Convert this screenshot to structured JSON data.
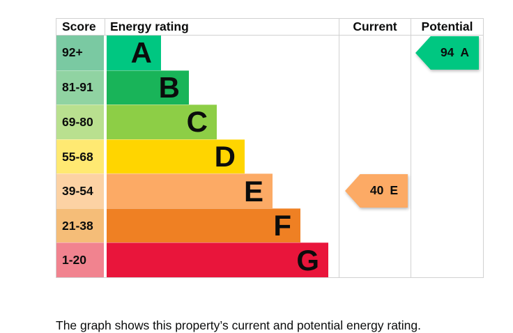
{
  "header": {
    "score": "Score",
    "energy_rating": "Energy rating",
    "current": "Current",
    "potential": "Potential"
  },
  "chart_data": {
    "type": "bar",
    "kind": "epc-energy-rating-chart",
    "orientation": "horizontal",
    "title": "Energy rating",
    "bands": [
      {
        "grade": "A",
        "score": "92+",
        "color": "#00c781",
        "tint": "#7ac9a2"
      },
      {
        "grade": "B",
        "score": "81-91",
        "color": "#19b459",
        "tint": "#90d3a2"
      },
      {
        "grade": "C",
        "score": "69-80",
        "color": "#8dce46",
        "tint": "#b9e08f"
      },
      {
        "grade": "D",
        "score": "55-68",
        "color": "#ffd500",
        "tint": "#ffe972"
      },
      {
        "grade": "E",
        "score": "39-54",
        "color": "#fcaa65",
        "tint": "#fcd2a4"
      },
      {
        "grade": "F",
        "score": "21-38",
        "color": "#ef8023",
        "tint": "#f5bd78"
      },
      {
        "grade": "G",
        "score": "1-20",
        "color": "#e9153b",
        "tint": "#f1838f"
      }
    ],
    "current": {
      "score": 40,
      "grade": "E",
      "color": "#fcaa65"
    },
    "potential": {
      "score": 94,
      "grade": "A",
      "color": "#00c781"
    },
    "legend_position": "none",
    "grid": false
  },
  "colors": {
    "border": "#d1d1d1",
    "text": "#0b0c0c",
    "background": "#ffffff"
  },
  "footer": {
    "text": "The graph shows this property’s current and potential energy rating."
  }
}
